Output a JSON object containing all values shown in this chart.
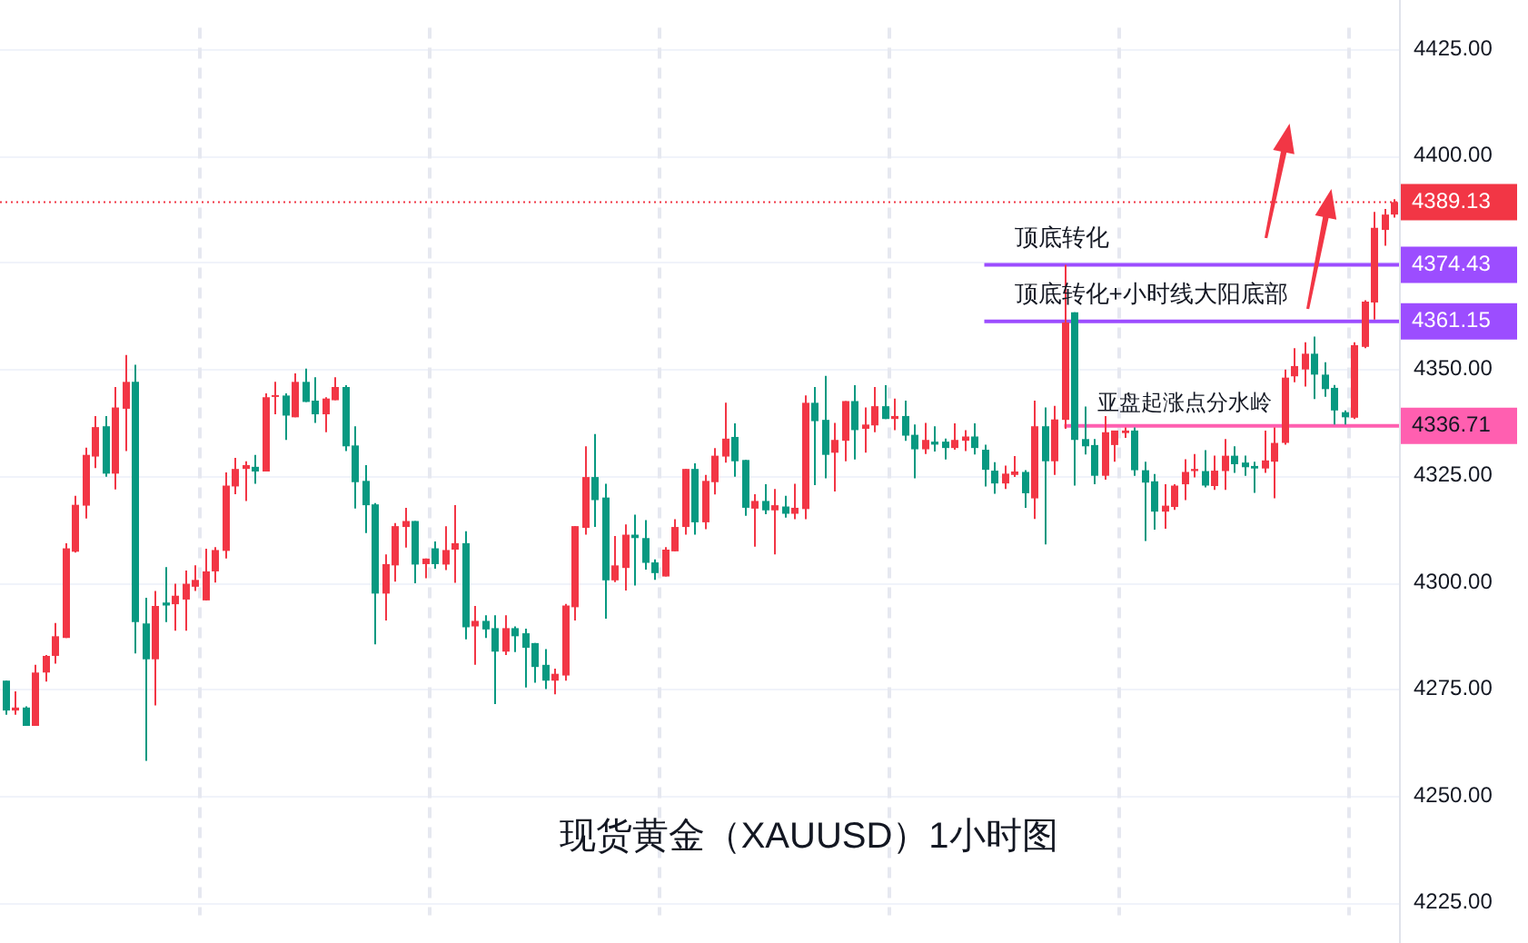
{
  "chart_data": {
    "type": "candlestick",
    "title": "现货黄金（XAUUSD）1小时图",
    "categories": [
      null,
      null,
      null,
      null,
      null,
      null,
      null,
      null,
      null,
      null,
      null,
      null,
      null,
      null,
      null,
      null,
      null,
      null,
      null,
      null,
      null,
      null,
      null,
      null,
      null,
      null,
      null,
      null,
      null,
      null,
      null,
      null,
      null,
      null,
      null,
      null,
      null,
      null,
      null,
      null,
      null,
      null,
      null,
      null,
      null,
      null,
      null,
      null,
      null,
      null,
      null,
      null,
      null,
      null,
      null,
      null,
      null,
      null,
      null,
      null,
      null,
      null,
      null,
      null,
      null,
      null,
      null,
      null,
      null,
      null,
      null,
      null,
      null,
      null,
      null,
      null,
      null,
      null,
      null,
      null,
      null,
      null,
      null,
      null,
      null,
      null,
      null,
      null,
      null,
      null,
      null,
      null,
      null,
      null,
      null,
      null,
      null,
      null,
      null,
      null,
      null,
      null,
      null,
      null,
      null,
      null,
      null,
      null,
      null,
      null,
      null,
      null,
      null,
      null,
      null,
      null,
      null,
      null,
      null,
      null,
      null,
      null,
      null,
      null,
      null,
      null,
      null,
      null,
      null,
      null,
      null,
      null,
      null,
      null,
      null,
      null,
      null,
      null,
      null,
      null
    ],
    "ohlc": [
      [
        4277,
        4277,
        4269,
        4270
      ],
      [
        4270,
        4274.5,
        4269,
        4270.7
      ],
      [
        4270.7,
        4271,
        4266.4,
        4266.4
      ],
      [
        4266.4,
        4280.7,
        4266.4,
        4278.9
      ],
      [
        4278.9,
        4283,
        4276.8,
        4282.8
      ],
      [
        4282.8,
        4290.5,
        4281,
        4287.4
      ],
      [
        4287,
        4309.2,
        4287,
        4308
      ],
      [
        4307.2,
        4320.3,
        4307,
        4318.2
      ],
      [
        4318,
        4331.6,
        4315,
        4329.9
      ],
      [
        4329.5,
        4339,
        4326.8,
        4336.4
      ],
      [
        4336.6,
        4339,
        4324.8,
        4325.5
      ],
      [
        4325.5,
        4345.8,
        4321.8,
        4341
      ],
      [
        4340.7,
        4353.3,
        4330.8,
        4347
      ],
      [
        4347,
        4351,
        4283.4,
        4290.7
      ],
      [
        4290.4,
        4296.4,
        4258.2,
        4282
      ],
      [
        4282,
        4298,
        4271.2,
        4294.5
      ],
      [
        4295.3,
        4303.6,
        4290.7,
        4294.6
      ],
      [
        4294.9,
        4299.7,
        4288.7,
        4296.9
      ],
      [
        4296,
        4302.8,
        4288.7,
        4299.7
      ],
      [
        4299,
        4304,
        4298,
        4300.6
      ],
      [
        4295.8,
        4307.9,
        4295.8,
        4302.6
      ],
      [
        4302.6,
        4308.3,
        4300,
        4307.6
      ],
      [
        4307.4,
        4325.8,
        4305.6,
        4322.7
      ],
      [
        4322.5,
        4329.2,
        4320.7,
        4326.6
      ],
      [
        4326.6,
        4328.4,
        4319.1,
        4327.5
      ],
      [
        4327.1,
        4329.9,
        4323.1,
        4326
      ],
      [
        4326,
        4344.3,
        4326,
        4343.4
      ],
      [
        4343.5,
        4347,
        4339.4,
        4343.9
      ],
      [
        4343.8,
        4344.3,
        4333.4,
        4339.1
      ],
      [
        4338.7,
        4349,
        4338.7,
        4347
      ],
      [
        4347,
        4350.1,
        4342.3,
        4342.3
      ],
      [
        4342.6,
        4348.1,
        4337.4,
        4339.4
      ],
      [
        4339.4,
        4343.4,
        4335.2,
        4343.1
      ],
      [
        4342.7,
        4348.1,
        4342.7,
        4345.8
      ],
      [
        4345.8,
        4346.2,
        4330.8,
        4331.9
      ],
      [
        4332.1,
        4336.6,
        4317.3,
        4323.5
      ],
      [
        4323.8,
        4327.5,
        4311.6,
        4318.1
      ],
      [
        4318.3,
        4318.6,
        4285.5,
        4297.4
      ],
      [
        4297.4,
        4306.6,
        4291.1,
        4304.3
      ],
      [
        4304,
        4313.9,
        4300.2,
        4313.2
      ],
      [
        4313,
        4317.5,
        4308.2,
        4314.4
      ],
      [
        4314.4,
        4314.4,
        4299.8,
        4304.2
      ],
      [
        4304.3,
        4305.6,
        4301,
        4305.6
      ],
      [
        4308,
        4309.6,
        4303.2,
        4304.3
      ],
      [
        4304.2,
        4313.2,
        4302.9,
        4307.6
      ],
      [
        4307.7,
        4318.1,
        4299.9,
        4309.2
      ],
      [
        4309.2,
        4312,
        4286.7,
        4289.5
      ],
      [
        4289.7,
        4294.5,
        4280.7,
        4291
      ],
      [
        4291,
        4292.3,
        4287,
        4289
      ],
      [
        4289.3,
        4292.3,
        4271.5,
        4283.8
      ],
      [
        4283.8,
        4292.3,
        4283,
        4289.3
      ],
      [
        4289.3,
        4289.7,
        4283.7,
        4287.4
      ],
      [
        4288.1,
        4289.2,
        4275.4,
        4284.7
      ],
      [
        4285.8,
        4285.8,
        4276.5,
        4280.2
      ],
      [
        4280.7,
        4284.4,
        4275,
        4277
      ],
      [
        4277,
        4279.8,
        4273.8,
        4278.6
      ],
      [
        4278.2,
        4295,
        4277,
        4294.6
      ],
      [
        4294.2,
        4313.2,
        4291.1,
        4313.2
      ],
      [
        4312.8,
        4331.9,
        4311.2,
        4324.7
      ],
      [
        4324.7,
        4334.8,
        4313,
        4319.3
      ],
      [
        4319.9,
        4323.1,
        4291.5,
        4300.5
      ],
      [
        4300.5,
        4310.9,
        4300.1,
        4304
      ],
      [
        4303.4,
        4313.6,
        4298.1,
        4311.2
      ],
      [
        4311.2,
        4315.9,
        4299.3,
        4310.4
      ],
      [
        4310.4,
        4314.6,
        4303,
        4304.6
      ],
      [
        4304.7,
        4305.4,
        4300.6,
        4302.2
      ],
      [
        4301.4,
        4308.3,
        4301.4,
        4307.7
      ],
      [
        4307.3,
        4314.8,
        4307.3,
        4313
      ],
      [
        4313,
        4326.6,
        4311.2,
        4326.6
      ],
      [
        4326.6,
        4327.9,
        4311.2,
        4314.1
      ],
      [
        4314.1,
        4325.2,
        4312.5,
        4323.8
      ],
      [
        4323.5,
        4331.5,
        4320.6,
        4329.7
      ],
      [
        4329.5,
        4342.1,
        4328.1,
        4333.7
      ],
      [
        4334.1,
        4337.3,
        4324.8,
        4328.4
      ],
      [
        4328.7,
        4328.7,
        4315.6,
        4317.5
      ],
      [
        4317.3,
        4320.7,
        4308.4,
        4319.1
      ],
      [
        4319.1,
        4323,
        4316,
        4316.9
      ],
      [
        4316.9,
        4321.9,
        4306.6,
        4318.1
      ],
      [
        4317.8,
        4320.3,
        4315.2,
        4316.1
      ],
      [
        4316.1,
        4323.1,
        4314.8,
        4317.5
      ],
      [
        4317.2,
        4343.8,
        4314.8,
        4342.1
      ],
      [
        4342.1,
        4345.8,
        4322.8,
        4337.8
      ],
      [
        4338.1,
        4348.4,
        4324.4,
        4329.9
      ],
      [
        4330.4,
        4337.4,
        4321.3,
        4333.4
      ],
      [
        4333.2,
        4342.5,
        4328.4,
        4342.5
      ],
      [
        4342.5,
        4346.2,
        4328.8,
        4335.7
      ],
      [
        4336,
        4341,
        4330.4,
        4337
      ],
      [
        4336.8,
        4345.8,
        4335.2,
        4341.3
      ],
      [
        4341.3,
        4346.2,
        4338.3,
        4338.3
      ],
      [
        4338.3,
        4343.1,
        4335.7,
        4339
      ],
      [
        4339,
        4342.6,
        4333.2,
        4334.4
      ],
      [
        4334.6,
        4337,
        4324.4,
        4331.2
      ],
      [
        4331.2,
        4337.4,
        4330.1,
        4333.4
      ],
      [
        4333,
        4336.6,
        4330.7,
        4332.3
      ],
      [
        4333,
        4333.7,
        4328.8,
        4331.5
      ],
      [
        4331.5,
        4337.3,
        4331.1,
        4333.4
      ],
      [
        4333.2,
        4335.7,
        4330.8,
        4334.2
      ],
      [
        4334.2,
        4337.3,
        4330,
        4331.5
      ],
      [
        4331.1,
        4332.3,
        4322.5,
        4326.4
      ],
      [
        4326.2,
        4328.2,
        4320.8,
        4323.2
      ],
      [
        4323.2,
        4327.4,
        4321.9,
        4325.5
      ],
      [
        4325.2,
        4329.6,
        4324.7,
        4326
      ],
      [
        4325.9,
        4326.3,
        4317.5,
        4320.9
      ],
      [
        4319.7,
        4342.6,
        4314.9,
        4336.6
      ],
      [
        4336.6,
        4341,
        4308.9,
        4328.4
      ],
      [
        4328.4,
        4341.4,
        4325.2,
        4338.2
      ],
      [
        4338.1,
        4374.4,
        4336,
        4360.9
      ],
      [
        4363.3,
        4363.3,
        4322.7,
        4333.4
      ],
      [
        4333.6,
        4341.2,
        4330,
        4331.9
      ],
      [
        4332.2,
        4333.6,
        4323,
        4325
      ],
      [
        4325,
        4339,
        4324.1,
        4335.2
      ],
      [
        4332.2,
        4335.6,
        4328.3,
        4335.6
      ],
      [
        4335,
        4336.3,
        4333.9,
        4335.6
      ],
      [
        4335.6,
        4336.3,
        4325,
        4326.3
      ],
      [
        4326.3,
        4328.3,
        4309.7,
        4323.4
      ],
      [
        4323.7,
        4325.4,
        4312.4,
        4316.6
      ],
      [
        4316.6,
        4323,
        4312.6,
        4318
      ],
      [
        4317.7,
        4323,
        4317,
        4322.7
      ],
      [
        4323,
        4328.9,
        4319.3,
        4325.9
      ],
      [
        4326.1,
        4330.1,
        4324.6,
        4326.6
      ],
      [
        4326.1,
        4331,
        4322.3,
        4322.7
      ],
      [
        4322.6,
        4329.7,
        4321.7,
        4326.2
      ],
      [
        4326.1,
        4333.6,
        4321.7,
        4329.7
      ],
      [
        4329.7,
        4331.9,
        4325.7,
        4327.7
      ],
      [
        4328.1,
        4329.7,
        4325,
        4327
      ],
      [
        4327.3,
        4328.3,
        4321,
        4326.7
      ],
      [
        4326.7,
        4335.6,
        4325.7,
        4328.6
      ],
      [
        4328.3,
        4336.3,
        4319.7,
        4332.7
      ],
      [
        4332.7,
        4349.9,
        4332.3,
        4348
      ],
      [
        4348.3,
        4354.9,
        4346.9,
        4350.7
      ],
      [
        4349.9,
        4356.3,
        4345.9,
        4353.6
      ],
      [
        4353.6,
        4357.6,
        4343,
        4348.7
      ],
      [
        4348.7,
        4351.6,
        4343.5,
        4345.3
      ],
      [
        4345.6,
        4346.3,
        4337,
        4340.3
      ],
      [
        4339.9,
        4340.3,
        4337,
        4338.7
      ],
      [
        4338.6,
        4356.3,
        4338.3,
        4355.6
      ],
      [
        4355.2,
        4366.1,
        4354.9,
        4365.8
      ],
      [
        4365.6,
        4386.8,
        4361.6,
        4383.1
      ],
      [
        4382.6,
        4387.5,
        4378.9,
        4386.2
      ],
      [
        4386.2,
        4389.8,
        4385.5,
        4389.13
      ]
    ],
    "ylim": [
      4222,
      4430
    ],
    "yticks": [
      {
        "value": 4225,
        "label": "4225.00"
      },
      {
        "value": 4250,
        "label": "4250.00"
      },
      {
        "value": 4275,
        "label": "4275.00"
      },
      {
        "value": 4300,
        "label": "4300.00"
      },
      {
        "value": 4325,
        "label": "4325.00"
      },
      {
        "value": 4350,
        "label": "4350.00"
      },
      {
        "value": 4375,
        "label": null
      },
      {
        "value": 4400,
        "label": "4400.00"
      },
      {
        "value": 4425,
        "label": "4425.00"
      }
    ],
    "ref_lines": [
      {
        "axis": "y",
        "value": 4389.13,
        "label": null,
        "color": "#f23645",
        "line_style": "dotted"
      },
      {
        "axis": "y",
        "value": 4374.43,
        "label": "顶底转化",
        "color": "#9c4dff",
        "line_style": "solid"
      },
      {
        "axis": "y",
        "value": 4361.15,
        "label": "顶底转化+小时线大阳底部",
        "color": "#9c4dff",
        "line_style": "solid"
      },
      {
        "axis": "y",
        "value": 4336.71,
        "label": "亚盘起涨点分水岭",
        "color": "#ff5fb0",
        "line_style": "solid"
      }
    ],
    "annotations": [
      "4389.13",
      "4374.43",
      "4361.15",
      "4336.71"
    ],
    "grid": "y"
  }
}
